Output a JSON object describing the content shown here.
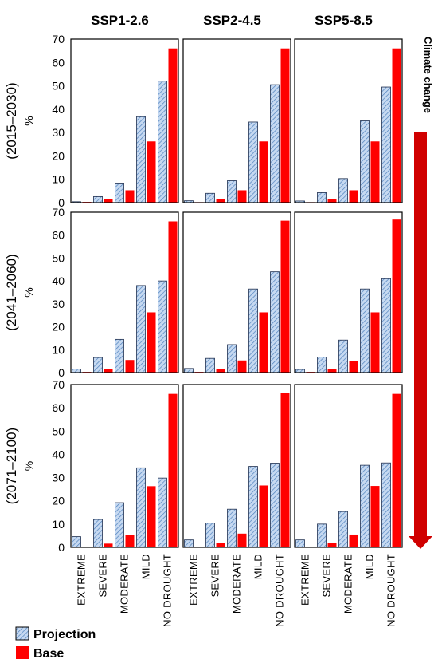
{
  "chart_data": {
    "type": "bar",
    "columns": [
      "SSP1-2.6",
      "SSP2-4.5",
      "SSP5-8.5"
    ],
    "rows": [
      "(2015–2030)",
      "(2041–2060)",
      "(2071–2100)"
    ],
    "ylabel": "%",
    "ylim": [
      0,
      70
    ],
    "yticks": [
      0,
      10,
      20,
      30,
      40,
      50,
      60,
      70
    ],
    "categories": [
      "EXTREME",
      "SEVERE",
      "MODERATE",
      "MILD",
      "NO DROUGHT"
    ],
    "series_names": [
      "Projection",
      "Base"
    ],
    "colors": {
      "projection_fill": "#c6d9f1",
      "projection_hatch": "#4f81bd",
      "base": "#ff0000",
      "arrow": "#d00000"
    },
    "panels": [
      [
        {
          "Projection": [
            0.4,
            2.6,
            8.4,
            36.8,
            52.0
          ],
          "Base": [
            0.3,
            1.5,
            5.3,
            26.2,
            66.0
          ]
        },
        {
          "Projection": [
            0.8,
            4.0,
            9.4,
            34.5,
            50.5
          ],
          "Base": [
            0.2,
            1.5,
            5.3,
            26.2,
            66.0
          ]
        },
        {
          "Projection": [
            0.7,
            4.3,
            10.3,
            35.0,
            49.5
          ],
          "Base": [
            0.2,
            1.5,
            5.3,
            26.2,
            66.0
          ]
        }
      ],
      [
        {
          "Projection": [
            1.6,
            6.6,
            14.5,
            38.0,
            40.0
          ],
          "Base": [
            0.3,
            1.7,
            5.5,
            26.3,
            66.0
          ]
        },
        {
          "Projection": [
            1.8,
            6.2,
            12.2,
            36.5,
            44.0
          ],
          "Base": [
            0.3,
            1.7,
            5.3,
            26.3,
            66.3
          ]
        },
        {
          "Projection": [
            1.4,
            6.8,
            14.2,
            36.5,
            41.0
          ],
          "Base": [
            0.3,
            1.5,
            5.0,
            26.3,
            66.8
          ]
        }
      ],
      [
        {
          "Projection": [
            4.6,
            12.0,
            19.2,
            34.2,
            29.8
          ],
          "Base": [
            0.0,
            1.6,
            5.3,
            26.3,
            66.0
          ]
        },
        {
          "Projection": [
            3.2,
            10.4,
            16.4,
            34.8,
            36.2
          ],
          "Base": [
            0.2,
            1.8,
            5.9,
            26.6,
            66.5
          ]
        },
        {
          "Projection": [
            3.2,
            10.0,
            15.4,
            35.3,
            36.3
          ],
          "Base": [
            0.2,
            1.8,
            5.5,
            26.4,
            66.0
          ]
        }
      ]
    ]
  },
  "side_label": "Climate change",
  "legend": {
    "projection": "Projection",
    "base": "Base"
  }
}
